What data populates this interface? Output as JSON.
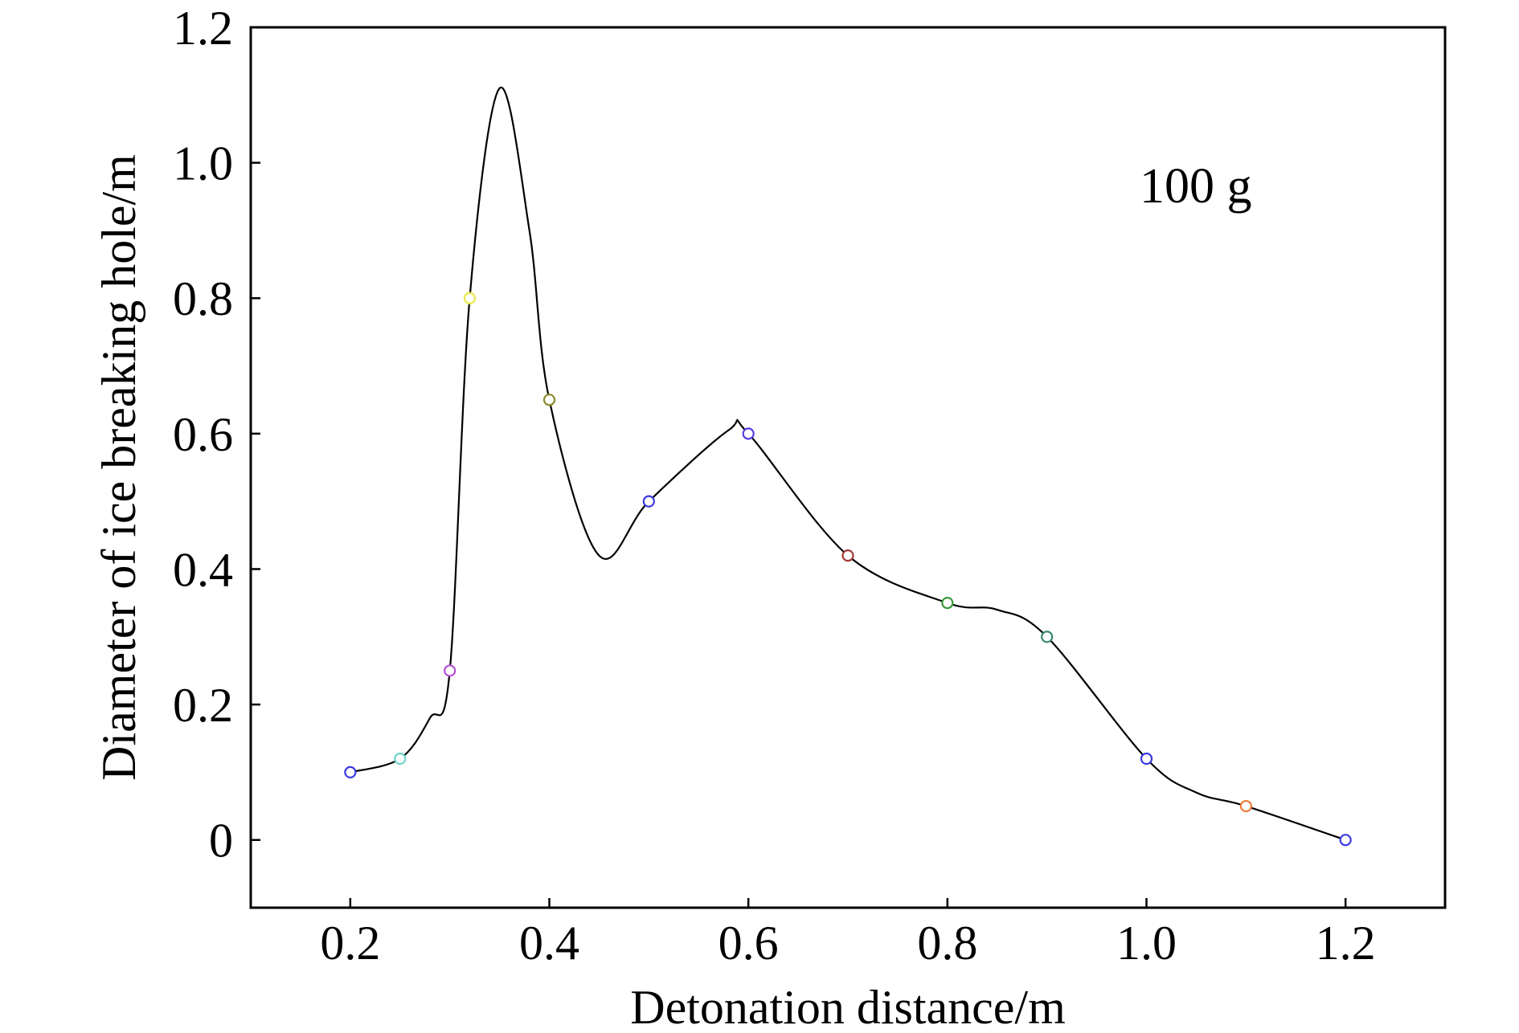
{
  "chart_data": {
    "type": "line",
    "xlabel": "Detonation distance/m",
    "ylabel": "Diameter of ice breaking hole/m",
    "annotation": "100 g",
    "xlim": [
      0.1,
      1.3
    ],
    "ylim": [
      -0.1,
      1.2
    ],
    "xticks": [
      0.2,
      0.4,
      0.6,
      0.8,
      1.0,
      1.2
    ],
    "xtick_labels": [
      "0.2",
      "0.4",
      "0.6",
      "0.8",
      "1.0",
      "1.2"
    ],
    "yticks": [
      0,
      0.2,
      0.4,
      0.6,
      0.8,
      1.0,
      1.2
    ],
    "ytick_labels": [
      "0",
      "0.2",
      "0.4",
      "0.6",
      "0.8",
      "1.0",
      "1.2"
    ],
    "grid": false,
    "series": [
      {
        "x": [
          0.2,
          0.25,
          0.3,
          0.32,
          0.4,
          0.5,
          0.6,
          0.7,
          0.8,
          0.9,
          1.0,
          1.1,
          1.2
        ],
        "y": [
          0.1,
          0.12,
          0.25,
          0.8,
          0.65,
          0.5,
          0.6,
          0.42,
          0.35,
          0.3,
          0.12,
          0.05,
          0.0
        ],
        "marker_colors": [
          "#3a3adf",
          "#6fd3c8",
          "#b54fd6",
          "#e8e84a",
          "#8a8a2a",
          "#3a3adf",
          "#5a3adf",
          "#a23a3a",
          "#3a9a3a",
          "#3a8a6a",
          "#3a3adf",
          "#ee7a3a",
          "#3a3adf"
        ],
        "curve_x": [
          0.2,
          0.25,
          0.28,
          0.3,
          0.32,
          0.35,
          0.38,
          0.4,
          0.45,
          0.5,
          0.58,
          0.6,
          0.7,
          0.8,
          0.85,
          0.9,
          1.0,
          1.05,
          1.1,
          1.2
        ],
        "curve_y": [
          0.1,
          0.12,
          0.18,
          0.25,
          0.8,
          1.11,
          0.9,
          0.65,
          0.42,
          0.5,
          0.605,
          0.6,
          0.42,
          0.35,
          0.34,
          0.3,
          0.12,
          0.07,
          0.05,
          0.0
        ]
      }
    ],
    "line_color": "#000000"
  }
}
